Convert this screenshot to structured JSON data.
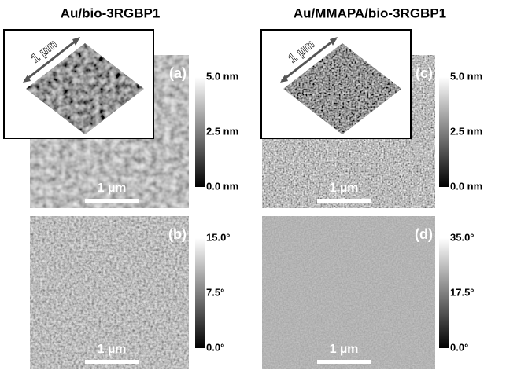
{
  "columns": [
    {
      "title": "Au/bio-3RGBP1",
      "inset_scale": "1 µm",
      "panels": [
        {
          "label": "(a)",
          "scale_bar": "1 µm",
          "colorbar": [
            "5.0 nm",
            "2.5 nm",
            "0.0 nm"
          ]
        },
        {
          "label": "(b)",
          "scale_bar": "1 µm",
          "colorbar": [
            "15.0°",
            "7.5°",
            "0.0°"
          ]
        }
      ]
    },
    {
      "title": "Au/MMAPA/bio-3RGBP1",
      "inset_scale": "1 µm",
      "panels": [
        {
          "label": "(c)",
          "scale_bar": "1 µm",
          "colorbar": [
            "5.0 nm",
            "2.5 nm",
            "0.0 nm"
          ]
        },
        {
          "label": "(d)",
          "scale_bar": "1 µm",
          "colorbar": [
            "35.0°",
            "17.5°",
            "0.0°"
          ]
        }
      ]
    }
  ]
}
